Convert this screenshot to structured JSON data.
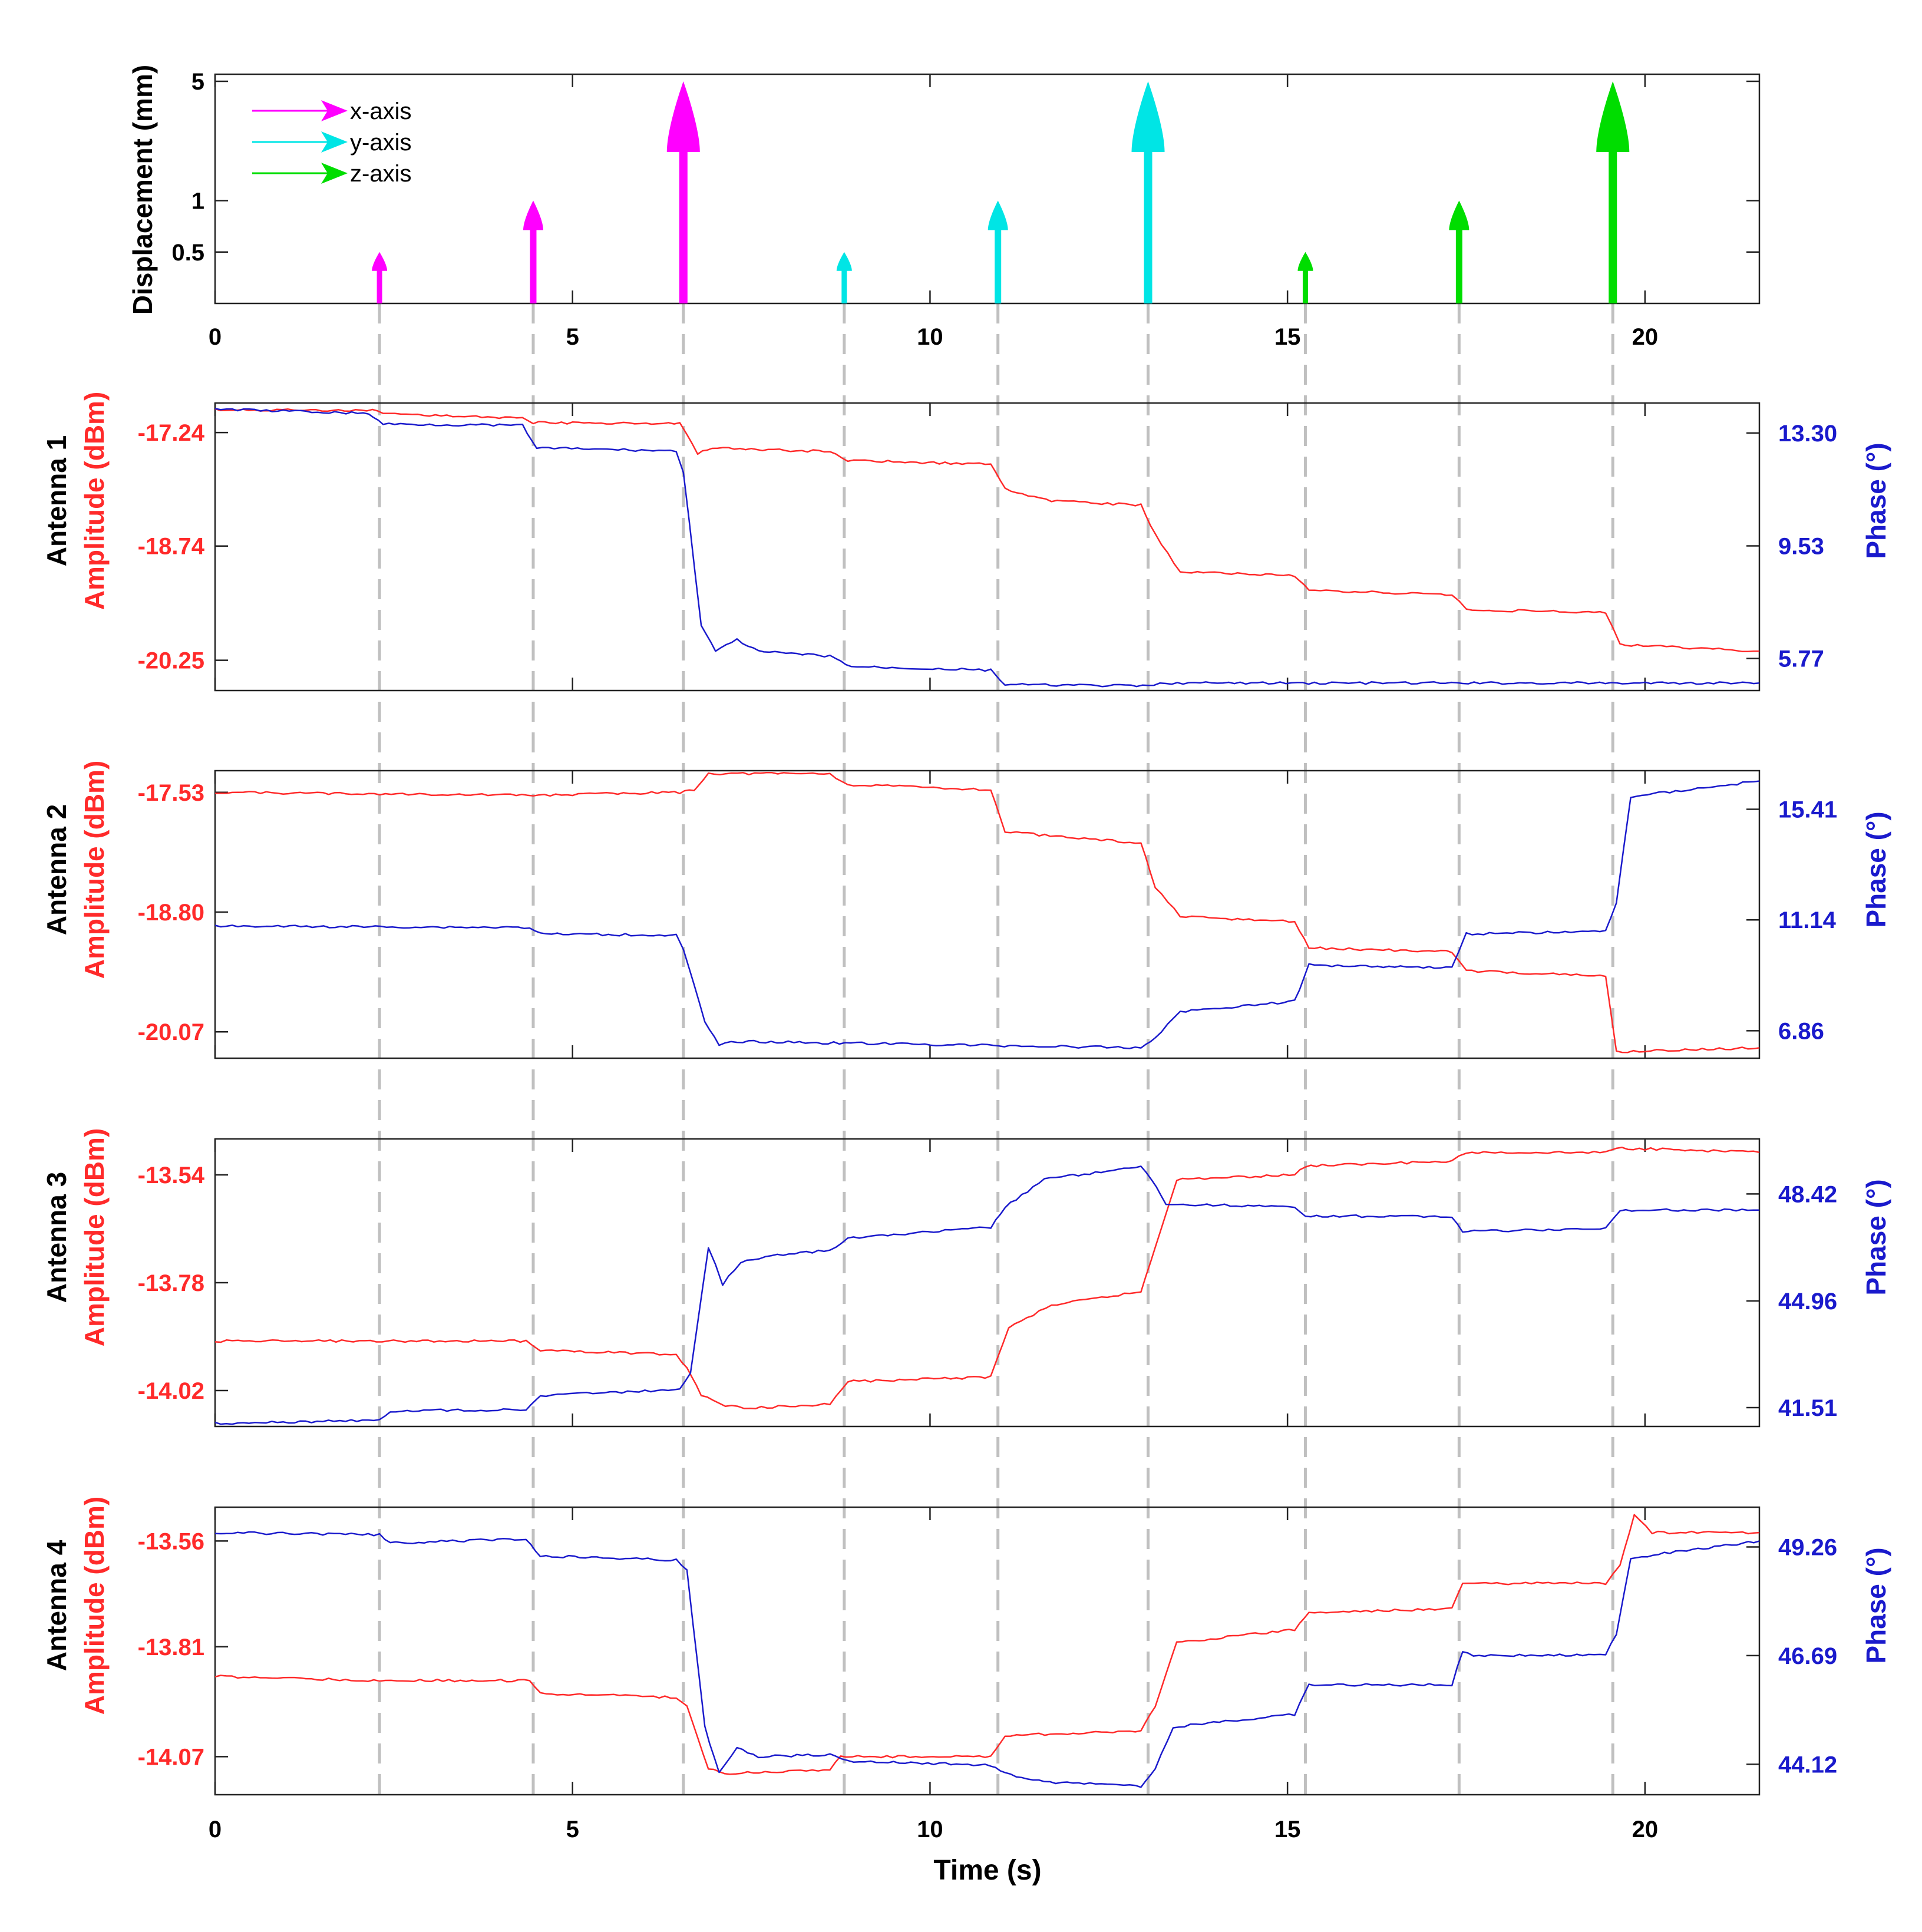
{
  "colors": {
    "amplitude": "#ff2a2a",
    "phase": "#1a1acc",
    "x_axis": "#ff00ff",
    "y_axis": "#00e5e5",
    "z_axis": "#00dd00",
    "grid": "#c0c0c0"
  },
  "chart_data": [
    {
      "type": "bar",
      "panel": "displacement",
      "ylabel": "Displacement (mm)",
      "xlim": [
        0,
        21.6
      ],
      "ylim": [
        0.25,
        5.5
      ],
      "yscale": "log",
      "xticks": [
        0,
        5,
        10,
        15,
        20
      ],
      "yticks": [
        {
          "value": 0.5,
          "label": "0.5"
        },
        {
          "value": 1,
          "label": "1"
        },
        {
          "value": 5,
          "label": "5"
        }
      ],
      "legend": {
        "position": "top-left",
        "entries": [
          {
            "label": "x-axis",
            "color": "#ff00ff"
          },
          {
            "label": "y-axis",
            "color": "#00e5e5"
          },
          {
            "label": "z-axis",
            "color": "#00dd00"
          }
        ]
      },
      "events": [
        {
          "t": 2.3,
          "value": 0.5,
          "axis": "x-axis"
        },
        {
          "t": 4.45,
          "value": 1,
          "axis": "x-axis"
        },
        {
          "t": 6.55,
          "value": 5,
          "axis": "x-axis"
        },
        {
          "t": 8.8,
          "value": 0.5,
          "axis": "y-axis"
        },
        {
          "t": 10.95,
          "value": 1,
          "axis": "y-axis"
        },
        {
          "t": 13.05,
          "value": 5,
          "axis": "y-axis"
        },
        {
          "t": 15.25,
          "value": 0.5,
          "axis": "z-axis"
        },
        {
          "t": 17.4,
          "value": 1,
          "axis": "z-axis"
        },
        {
          "t": 19.55,
          "value": 5,
          "axis": "z-axis"
        }
      ]
    },
    {
      "type": "line",
      "panel": "antenna-1",
      "title": "Antenna 1",
      "ylabel_left": "Amplitude (dBm)",
      "ylabel_right": "Phase (°)",
      "xlim": [
        0,
        21.6
      ],
      "ylim_left": [
        -20.65,
        -16.85
      ],
      "ylim_right": [
        4.7,
        14.3
      ],
      "yticks_left": [
        "-17.24",
        "-18.74",
        "-20.25"
      ],
      "yticks_right": [
        "13.30",
        "9.53",
        "5.77"
      ],
      "series": [
        {
          "axis": "left",
          "color": "#ff2a2a",
          "x": [
            0,
            2.2,
            2.35,
            4.3,
            4.45,
            6.5,
            6.6,
            6.75,
            6.95,
            8.6,
            8.85,
            10.85,
            11.05,
            11.7,
            12.95,
            13.15,
            13.5,
            15.1,
            15.3,
            17.3,
            17.5,
            19.45,
            19.65,
            21.6
          ],
          "y": [
            -16.94,
            -16.95,
            -16.99,
            -17.05,
            -17.11,
            -17.12,
            -17.28,
            -17.52,
            -17.45,
            -17.49,
            -17.61,
            -17.66,
            -17.99,
            -18.14,
            -18.2,
            -18.59,
            -19.08,
            -19.13,
            -19.33,
            -19.38,
            -19.58,
            -19.62,
            -20.04,
            -20.13
          ]
        },
        {
          "axis": "right",
          "color": "#1a1acc",
          "x": [
            0,
            2.15,
            2.35,
            4.3,
            4.5,
            6.45,
            6.55,
            6.8,
            7.0,
            7.3,
            7.6,
            8.6,
            8.9,
            10.85,
            11.05,
            13.05,
            13.3,
            21.6
          ],
          "y": [
            14.1,
            13.95,
            13.6,
            13.55,
            12.8,
            12.7,
            12.0,
            6.9,
            6.0,
            6.4,
            6.0,
            5.85,
            5.5,
            5.38,
            4.9,
            4.85,
            4.95,
            4.95
          ]
        }
      ]
    },
    {
      "type": "line",
      "panel": "antenna-2",
      "title": "Antenna 2",
      "ylabel_left": "Amplitude (dBm)",
      "ylabel_right": "Phase (°)",
      "xlim": [
        0,
        21.6
      ],
      "ylim_left": [
        -20.35,
        -17.3
      ],
      "ylim_right": [
        5.8,
        16.9
      ],
      "yticks_left": [
        "-17.53",
        "-18.80",
        "-20.07"
      ],
      "yticks_right": [
        "15.41",
        "11.14",
        "6.86"
      ],
      "series": [
        {
          "axis": "left",
          "color": "#ff2a2a",
          "x": [
            0,
            4.45,
            6.5,
            6.7,
            6.9,
            8.6,
            8.85,
            10.85,
            11.05,
            12.95,
            13.15,
            13.5,
            15.1,
            15.3,
            17.3,
            17.5,
            19.45,
            19.6,
            21.6
          ],
          "y": [
            -17.53,
            -17.56,
            -17.53,
            -17.5,
            -17.33,
            -17.33,
            -17.45,
            -17.5,
            -17.95,
            -18.07,
            -18.53,
            -18.85,
            -18.9,
            -19.18,
            -19.22,
            -19.42,
            -19.48,
            -20.28,
            -20.24
          ]
        },
        {
          "axis": "right",
          "color": "#1a1acc",
          "x": [
            0,
            4.4,
            4.55,
            6.45,
            6.55,
            6.85,
            7.05,
            7.3,
            12.95,
            13.15,
            13.5,
            15.1,
            15.3,
            17.3,
            17.5,
            19.45,
            19.6,
            19.8,
            21.6
          ],
          "y": [
            10.9,
            10.85,
            10.6,
            10.55,
            10.0,
            7.2,
            6.3,
            6.45,
            6.2,
            6.6,
            7.6,
            8.0,
            9.4,
            9.3,
            10.6,
            10.7,
            11.8,
            15.9,
            16.5
          ]
        }
      ]
    },
    {
      "type": "line",
      "panel": "antenna-3",
      "title": "Antenna 3",
      "ylabel_left": "Amplitude (dBm)",
      "ylabel_right": "Phase (°)",
      "xlim": [
        0,
        21.6
      ],
      "ylim_left": [
        -14.1,
        -13.46
      ],
      "ylim_right": [
        40.9,
        50.2
      ],
      "yticks_left": [
        "-13.54",
        "-13.78",
        "-14.02"
      ],
      "yticks_right": [
        "48.42",
        "44.96",
        "41.51"
      ],
      "series": [
        {
          "axis": "left",
          "color": "#ff2a2a",
          "x": [
            0,
            4.35,
            4.55,
            6.45,
            6.6,
            6.8,
            7.05,
            7.4,
            8.6,
            8.85,
            10.85,
            11.1,
            11.7,
            12.95,
            13.15,
            13.45,
            15.1,
            15.25,
            17.3,
            17.5,
            19.45,
            19.6,
            21.6
          ],
          "y": [
            -13.91,
            -13.91,
            -13.93,
            -13.94,
            -13.97,
            -14.03,
            -14.05,
            -14.06,
            -14.05,
            -14.0,
            -13.99,
            -13.88,
            -13.83,
            -13.8,
            -13.7,
            -13.55,
            -13.54,
            -13.52,
            -13.51,
            -13.49,
            -13.49,
            -13.48,
            -13.49
          ]
        },
        {
          "axis": "right",
          "color": "#1a1acc",
          "x": [
            0,
            2.3,
            2.45,
            4.35,
            4.55,
            6.5,
            6.65,
            6.9,
            7.1,
            7.35,
            7.7,
            8.6,
            8.85,
            10.85,
            11.05,
            11.6,
            12.95,
            13.1,
            13.3,
            15.1,
            15.25,
            17.3,
            17.45,
            19.45,
            19.65,
            21.6
          ],
          "y": [
            41.0,
            41.1,
            41.4,
            41.45,
            41.9,
            42.1,
            42.6,
            46.7,
            45.5,
            46.2,
            46.4,
            46.6,
            47.0,
            47.35,
            48.0,
            48.9,
            49.3,
            48.9,
            48.1,
            48.0,
            47.7,
            47.7,
            47.2,
            47.3,
            47.9,
            47.9
          ]
        }
      ]
    },
    {
      "type": "line",
      "panel": "antenna-4",
      "title": "Antenna 4",
      "ylabel_left": "Amplitude (dBm)",
      "ylabel_right": "Phase (°)",
      "xlim": [
        0,
        21.6
      ],
      "ylim_left": [
        -14.16,
        -13.48
      ],
      "ylim_right": [
        43.4,
        50.2
      ],
      "yticks_left": [
        "-13.56",
        "-13.81",
        "-14.07"
      ],
      "yticks_right": [
        "49.26",
        "46.69",
        "44.12"
      ],
      "series": [
        {
          "axis": "left",
          "color": "#ff2a2a",
          "x": [
            0,
            2.3,
            4.4,
            4.55,
            6.45,
            6.6,
            6.9,
            7.2,
            8.6,
            8.75,
            10.85,
            11.05,
            12.95,
            13.15,
            13.45,
            15.1,
            15.3,
            17.3,
            17.45,
            19.45,
            19.65,
            19.85,
            20.1,
            21.6
          ],
          "y": [
            -13.88,
            -13.89,
            -13.89,
            -13.92,
            -13.93,
            -13.95,
            -14.1,
            -14.11,
            -14.1,
            -14.07,
            -14.07,
            -14.02,
            -14.01,
            -13.95,
            -13.8,
            -13.77,
            -13.73,
            -13.72,
            -13.66,
            -13.66,
            -13.62,
            -13.5,
            -13.54,
            -13.54
          ]
        },
        {
          "axis": "right",
          "color": "#1a1acc",
          "x": [
            0,
            2.3,
            2.45,
            4.35,
            4.55,
            6.45,
            6.6,
            6.85,
            7.05,
            7.3,
            7.6,
            8.6,
            8.85,
            10.85,
            11.05,
            11.6,
            12.95,
            13.15,
            13.4,
            15.1,
            15.3,
            17.3,
            17.45,
            17.6,
            19.45,
            19.6,
            19.8,
            21.6
          ],
          "y": [
            49.6,
            49.55,
            49.35,
            49.45,
            49.05,
            48.95,
            48.7,
            45.0,
            43.9,
            44.5,
            44.3,
            44.35,
            44.2,
            44.1,
            43.9,
            43.7,
            43.6,
            44.0,
            45.0,
            45.3,
            46.0,
            46.0,
            46.8,
            46.7,
            46.7,
            47.2,
            49.0,
            49.4
          ]
        }
      ]
    }
  ],
  "labels": {
    "disp_ylabel": "Displacement (mm)",
    "antenna1": "Antenna 1",
    "antenna2": "Antenna 2",
    "antenna3": "Antenna 3",
    "antenna4": "Antenna 4",
    "amp_label": "Amplitude (dBm)",
    "phase_label": "Phase (°)",
    "xlabel": "Time (s)",
    "xtick_labels": [
      "0",
      "5",
      "10",
      "15",
      "20"
    ]
  }
}
